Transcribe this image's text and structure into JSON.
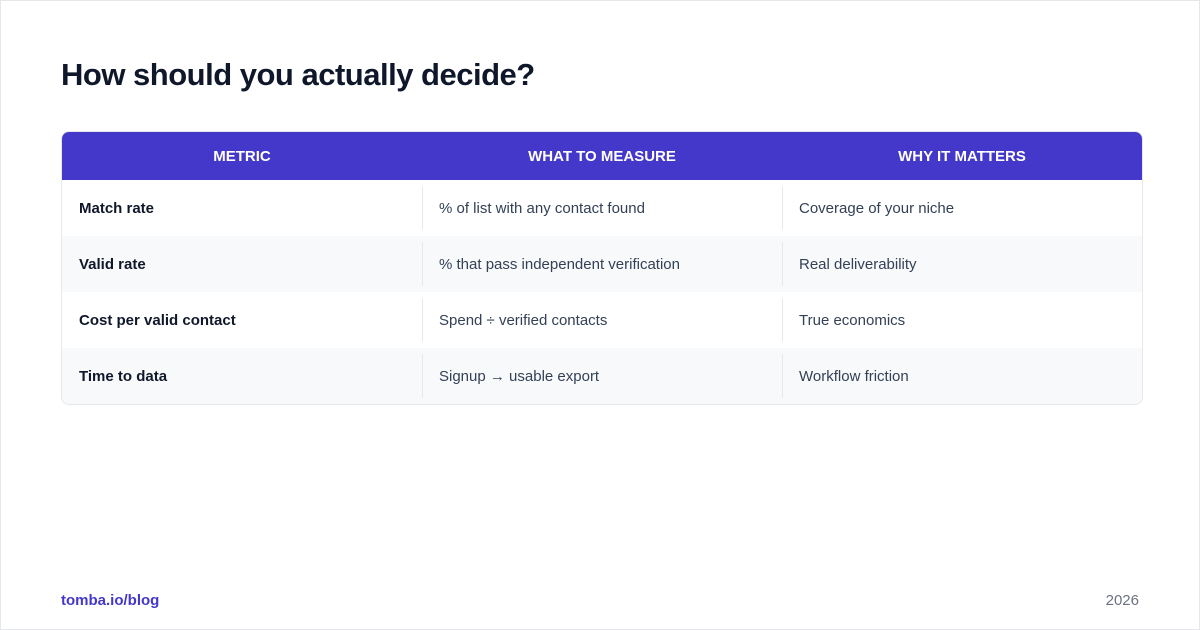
{
  "title": "How should you actually decide?",
  "table": {
    "headers": [
      "METRIC",
      "WHAT TO MEASURE",
      "WHY IT MATTERS"
    ],
    "rows": [
      [
        "Match rate",
        "% of list with any contact found",
        "Coverage of your niche"
      ],
      [
        "Valid rate",
        "% that pass independent verification",
        "Real deliverability"
      ],
      [
        "Cost per valid contact",
        "Spend ÷ verified contacts",
        "True economics"
      ],
      [
        "Time to data",
        "Signup → usable export",
        "Workflow friction"
      ]
    ]
  },
  "footer": {
    "link": "tomba.io/blog",
    "year": "2026"
  }
}
